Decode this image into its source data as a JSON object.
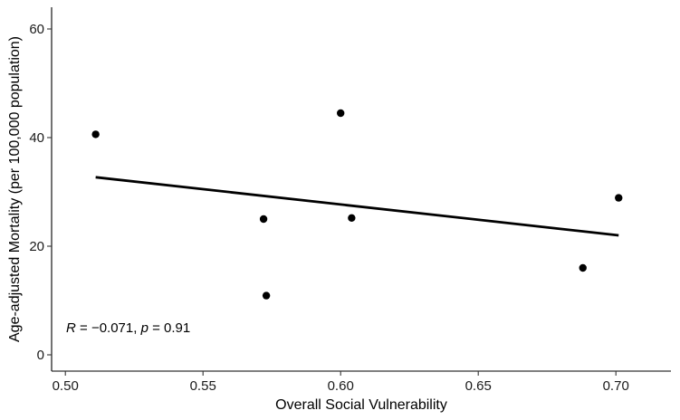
{
  "chart_data": {
    "type": "scatter",
    "title": "",
    "xlabel": "Overall Social Vulnerability",
    "ylabel": "Age-adjusted Mortality (per 100,000 population)",
    "xlim": [
      0.495,
      0.72
    ],
    "ylim": [
      -3,
      64
    ],
    "xticks": [
      0.5,
      0.55,
      0.6,
      0.65,
      0.7
    ],
    "xtick_labels": [
      "0.50",
      "0.55",
      "0.60",
      "0.65",
      "0.70"
    ],
    "yticks": [
      0,
      20,
      40,
      60
    ],
    "ytick_labels": [
      "0",
      "20",
      "40",
      "60"
    ],
    "grid": false,
    "points": [
      {
        "x": 0.511,
        "y": 40.6
      },
      {
        "x": 0.572,
        "y": 25.0
      },
      {
        "x": 0.573,
        "y": 10.9
      },
      {
        "x": 0.6,
        "y": 44.5
      },
      {
        "x": 0.604,
        "y": 25.2
      },
      {
        "x": 0.688,
        "y": 16.0
      },
      {
        "x": 0.701,
        "y": 28.9
      }
    ],
    "trend_line": {
      "x": [
        0.511,
        0.701
      ],
      "y": [
        32.7,
        22.0
      ]
    },
    "annotation": {
      "r_symbol": "R",
      "r_text": " = −0.071, ",
      "p_symbol": "p",
      "p_text": " = 0.91"
    }
  }
}
